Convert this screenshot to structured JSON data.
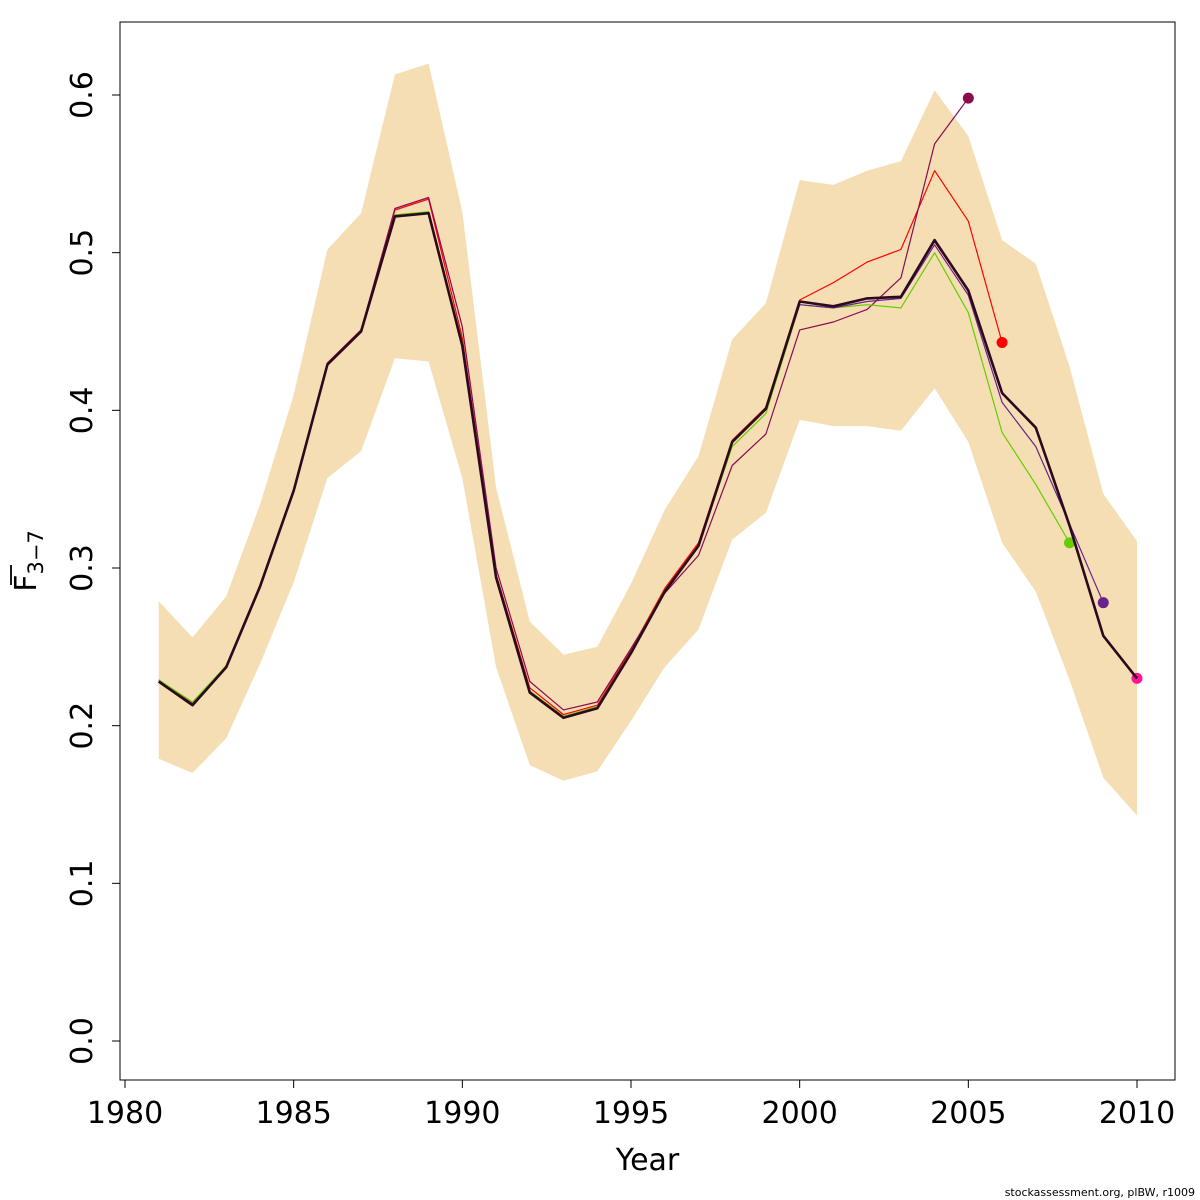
{
  "chart_data": {
    "type": "line",
    "xlabel": "Year",
    "ylabel_main": "F",
    "ylabel_sub": "3−7",
    "xlim": [
      1980,
      2010
    ],
    "ylim": [
      0,
      0.6
    ],
    "xticks": [
      "1980",
      "1985",
      "1990",
      "1995",
      "2000",
      "2005",
      "2010"
    ],
    "yticks": [
      "0.0",
      "0.1",
      "0.2",
      "0.3",
      "0.4",
      "0.5",
      "0.6"
    ],
    "grid": false,
    "footer": "stockassessment.org, plBW, r1009",
    "band": {
      "color": "#f5deb3",
      "x": [
        1981,
        1982,
        1983,
        1984,
        1985,
        1986,
        1987,
        1988,
        1989,
        1990,
        1991,
        1992,
        1993,
        1994,
        1995,
        1996,
        1997,
        1998,
        1999,
        2000,
        2001,
        2002,
        2003,
        2004,
        2005,
        2006,
        2007,
        2008,
        2009,
        2010
      ],
      "upper": [
        0.279,
        0.256,
        0.282,
        0.34,
        0.41,
        0.502,
        0.525,
        0.613,
        0.62,
        0.526,
        0.351,
        0.266,
        0.245,
        0.25,
        0.29,
        0.337,
        0.371,
        0.445,
        0.468,
        0.546,
        0.543,
        0.552,
        0.558,
        0.603,
        0.574,
        0.508,
        0.493,
        0.428,
        0.347,
        0.317
      ],
      "lower": [
        0.179,
        0.17,
        0.192,
        0.239,
        0.291,
        0.357,
        0.374,
        0.433,
        0.431,
        0.357,
        0.237,
        0.175,
        0.165,
        0.171,
        0.203,
        0.237,
        0.261,
        0.318,
        0.335,
        0.394,
        0.39,
        0.39,
        0.387,
        0.414,
        0.38,
        0.316,
        0.285,
        0.229,
        0.167,
        0.143
      ]
    },
    "series": [
      {
        "color": "#ff0000",
        "width": 1.2,
        "end_point": true,
        "x": [
          1981,
          1982,
          1983,
          1984,
          1985,
          1986,
          1987,
          1988,
          1989,
          1990,
          1991,
          1992,
          1993,
          1994,
          1995,
          1996,
          1997,
          1998,
          1999,
          2000,
          2001,
          2002,
          2003,
          2004,
          2005,
          2006
        ],
        "values": [
          0.228,
          0.213,
          0.238,
          0.289,
          0.35,
          0.43,
          0.451,
          0.527,
          0.534,
          0.446,
          0.296,
          0.224,
          0.207,
          0.213,
          0.248,
          0.287,
          0.316,
          0.381,
          0.402,
          0.47,
          0.481,
          0.494,
          0.502,
          0.552,
          0.52,
          0.443
        ]
      },
      {
        "color": "#8b0a50",
        "width": 1.2,
        "end_point": true,
        "x": [
          1981,
          1982,
          1983,
          1984,
          1985,
          1986,
          1987,
          1988,
          1989,
          1990,
          1991,
          1992,
          1993,
          1994,
          1995,
          1996,
          1997,
          1998,
          1999,
          2000,
          2001,
          2002,
          2003,
          2004,
          2005
        ],
        "values": [
          0.229,
          0.214,
          0.238,
          0.289,
          0.35,
          0.43,
          0.451,
          0.528,
          0.535,
          0.453,
          0.3,
          0.228,
          0.21,
          0.215,
          0.249,
          0.284,
          0.308,
          0.365,
          0.385,
          0.451,
          0.456,
          0.464,
          0.484,
          0.569,
          0.598
        ]
      },
      {
        "color": "#66cd00",
        "width": 1.2,
        "end_point": true,
        "x": [
          1981,
          1982,
          1983,
          1984,
          1985,
          1986,
          1987,
          1988,
          1989,
          1990,
          1991,
          1992,
          1993,
          1994,
          1995,
          1996,
          1997,
          1998,
          1999,
          2000,
          2001,
          2002,
          2003,
          2004,
          2005,
          2006,
          2007,
          2008
        ],
        "values": [
          0.229,
          0.215,
          0.238,
          0.288,
          0.349,
          0.429,
          0.45,
          0.524,
          0.526,
          0.443,
          0.295,
          0.222,
          0.206,
          0.212,
          0.247,
          0.286,
          0.314,
          0.377,
          0.398,
          0.467,
          0.465,
          0.467,
          0.465,
          0.5,
          0.462,
          0.386,
          0.353,
          0.316
        ]
      },
      {
        "color": "#68228b",
        "width": 1.2,
        "end_point": true,
        "x": [
          1981,
          1982,
          1983,
          1984,
          1985,
          1986,
          1987,
          1988,
          1989,
          1990,
          1991,
          1992,
          1993,
          1994,
          1995,
          1996,
          1997,
          1998,
          1999,
          2000,
          2001,
          2002,
          2003,
          2004,
          2005,
          2006,
          2007,
          2008,
          2009
        ],
        "values": [
          0.228,
          0.213,
          0.237,
          0.288,
          0.349,
          0.429,
          0.45,
          0.523,
          0.525,
          0.441,
          0.294,
          0.221,
          0.205,
          0.211,
          0.246,
          0.285,
          0.314,
          0.38,
          0.401,
          0.467,
          0.465,
          0.469,
          0.471,
          0.505,
          0.473,
          0.405,
          0.377,
          0.328,
          0.278
        ]
      },
      {
        "color": "#ff1493",
        "width": 1.2,
        "end_point": true,
        "x": [
          1981,
          1982,
          1983,
          1984,
          1985,
          1986,
          1987,
          1988,
          1989,
          1990,
          1991,
          1992,
          1993,
          1994,
          1995,
          1996,
          1997,
          1998,
          1999,
          2000,
          2001,
          2002,
          2003,
          2004,
          2005,
          2006,
          2007,
          2008,
          2009,
          2010
        ],
        "values": [
          0.228,
          0.213,
          0.237,
          0.288,
          0.349,
          0.429,
          0.45,
          0.523,
          0.525,
          0.441,
          0.294,
          0.221,
          0.205,
          0.211,
          0.246,
          0.285,
          0.314,
          0.38,
          0.401,
          0.469,
          0.466,
          0.471,
          0.472,
          0.507,
          0.476,
          0.411,
          0.389,
          0.327,
          0.257,
          0.23
        ]
      },
      {
        "color": "#2b0a1e",
        "width": 2.6,
        "end_point": false,
        "x": [
          1981,
          1982,
          1983,
          1984,
          1985,
          1986,
          1987,
          1988,
          1989,
          1990,
          1991,
          1992,
          1993,
          1994,
          1995,
          1996,
          1997,
          1998,
          1999,
          2000,
          2001,
          2002,
          2003,
          2004,
          2005,
          2006,
          2007,
          2008,
          2009,
          2010
        ],
        "values": [
          0.228,
          0.213,
          0.237,
          0.288,
          0.349,
          0.429,
          0.45,
          0.523,
          0.525,
          0.441,
          0.294,
          0.221,
          0.205,
          0.211,
          0.246,
          0.285,
          0.314,
          0.38,
          0.401,
          0.469,
          0.466,
          0.471,
          0.472,
          0.508,
          0.476,
          0.411,
          0.389,
          0.327,
          0.257,
          0.23
        ]
      }
    ]
  }
}
